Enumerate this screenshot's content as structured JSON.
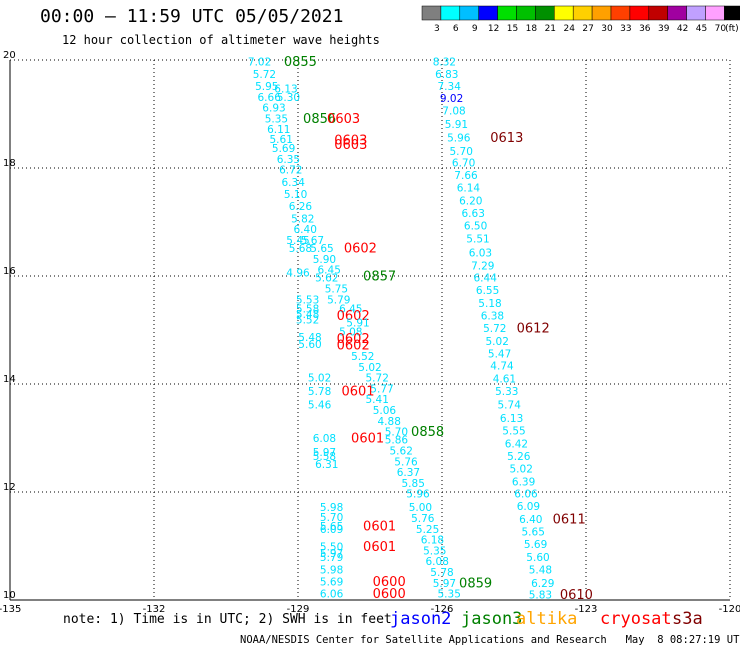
{
  "title": "00:00 – 11:59 UTC 05/05/2021",
  "subtitle": "12 hour collection of altimeter wave heights",
  "colorbar": {
    "labels": [
      "3",
      "6",
      "9",
      "12",
      "15",
      "18",
      "21",
      "24",
      "27",
      "30",
      "33",
      "36",
      "39",
      "42",
      "45",
      "70",
      "(ft)"
    ],
    "colors": [
      "#7f7f7f",
      "#00ffff",
      "#00bfff",
      "#0000ff",
      "#00e000",
      "#00c000",
      "#009000",
      "#ffff00",
      "#ffd000",
      "#ffa000",
      "#ff4000",
      "#ff0000",
      "#c00000",
      "#a000a0",
      "#c0a0ff",
      "#ffa0ff",
      "#000000"
    ]
  },
  "note": "note: 1) Time is in UTC; 2) SWH is in feet",
  "satellites": [
    {
      "name": "jason2",
      "color": "#0000ff"
    },
    {
      "name": "jason3",
      "color": "#008000"
    },
    {
      "name": "altika",
      "color": "#ffa500"
    },
    {
      "name": "cryosat",
      "color": "#ff0000"
    },
    {
      "name": "s3a",
      "color": "#800000"
    }
  ],
  "credit": "NOAA/NESDIS Center for Satellite Applications and Research   May  8 08:27:19 UTC 2021",
  "chart_data": {
    "type": "scatter",
    "xlim": [
      -135,
      -120
    ],
    "ylim": [
      10,
      20
    ],
    "xticks": [
      "-135",
      "-132",
      "-129",
      "-126",
      "-123",
      "-120"
    ],
    "yticks": [
      "10",
      "12",
      "14",
      "16",
      "18",
      "20"
    ],
    "grid": true,
    "colors": {
      "cyan": "#00e0ff",
      "lblue": "#00b0ff",
      "blue": "#0000ff",
      "green": "#008000",
      "red": "#ff0000",
      "maroon": "#800000"
    },
    "points": [
      {
        "x": -129.8,
        "y": 19.95,
        "v": "7.02",
        "c": "cyan"
      },
      {
        "x": -128.95,
        "y": 19.95,
        "v": "0855",
        "c": "green"
      },
      {
        "x": -129.7,
        "y": 19.72,
        "v": "5.72",
        "c": "cyan"
      },
      {
        "x": -129.65,
        "y": 19.5,
        "v": "5.95",
        "c": "cyan"
      },
      {
        "x": -129.25,
        "y": 19.45,
        "v": "6.13",
        "c": "cyan"
      },
      {
        "x": -129.6,
        "y": 19.3,
        "v": "6.66",
        "c": "cyan"
      },
      {
        "x": -129.2,
        "y": 19.3,
        "v": "5.30",
        "c": "cyan"
      },
      {
        "x": -129.5,
        "y": 19.1,
        "v": "6.93",
        "c": "cyan"
      },
      {
        "x": -129.45,
        "y": 18.9,
        "v": "5.35",
        "c": "cyan"
      },
      {
        "x": -128.55,
        "y": 18.9,
        "v": "0856",
        "c": "green"
      },
      {
        "x": -128.05,
        "y": 18.9,
        "v": "0603",
        "c": "red"
      },
      {
        "x": -129.4,
        "y": 18.7,
        "v": "6.11",
        "c": "cyan"
      },
      {
        "x": -129.35,
        "y": 18.52,
        "v": "5.61",
        "c": "cyan"
      },
      {
        "x": -127.9,
        "y": 18.5,
        "v": "0603",
        "c": "red"
      },
      {
        "x": -127.9,
        "y": 18.42,
        "v": "0603",
        "c": "red"
      },
      {
        "x": -129.3,
        "y": 18.35,
        "v": "5.69",
        "c": "cyan"
      },
      {
        "x": -129.2,
        "y": 18.15,
        "v": "6.35",
        "c": "cyan"
      },
      {
        "x": -129.15,
        "y": 17.95,
        "v": "6.72",
        "c": "cyan"
      },
      {
        "x": -129.1,
        "y": 17.72,
        "v": "6.34",
        "c": "cyan"
      },
      {
        "x": -129.05,
        "y": 17.5,
        "v": "5.10",
        "c": "cyan"
      },
      {
        "x": -128.95,
        "y": 17.28,
        "v": "6.26",
        "c": "cyan"
      },
      {
        "x": -128.9,
        "y": 17.05,
        "v": "5.82",
        "c": "cyan"
      },
      {
        "x": -128.85,
        "y": 16.85,
        "v": "6.40",
        "c": "cyan"
      },
      {
        "x": -128.7,
        "y": 16.65,
        "v": "5.67",
        "c": "cyan"
      },
      {
        "x": -129.0,
        "y": 16.65,
        "v": "5.45",
        "c": "cyan"
      },
      {
        "x": -128.95,
        "y": 16.5,
        "v": "5.68",
        "c": "cyan"
      },
      {
        "x": -128.5,
        "y": 16.5,
        "v": "5.65",
        "c": "cyan"
      },
      {
        "x": -127.7,
        "y": 16.5,
        "v": "0602",
        "c": "red"
      },
      {
        "x": -128.45,
        "y": 16.3,
        "v": "5.90",
        "c": "cyan"
      },
      {
        "x": -128.35,
        "y": 16.1,
        "v": "6.45",
        "c": "cyan"
      },
      {
        "x": -129.0,
        "y": 16.05,
        "v": "4.96",
        "c": "cyan"
      },
      {
        "x": -128.4,
        "y": 15.95,
        "v": "5.62",
        "c": "cyan"
      },
      {
        "x": -127.3,
        "y": 15.98,
        "v": "0857",
        "c": "green"
      },
      {
        "x": -128.2,
        "y": 15.75,
        "v": "5.75",
        "c": "cyan"
      },
      {
        "x": -128.15,
        "y": 15.55,
        "v": "5.79",
        "c": "cyan"
      },
      {
        "x": -128.8,
        "y": 15.55,
        "v": "5.53",
        "c": "cyan"
      },
      {
        "x": -128.8,
        "y": 15.38,
        "v": "5.58",
        "c": "cyan"
      },
      {
        "x": -127.9,
        "y": 15.38,
        "v": "6.45",
        "c": "cyan"
      },
      {
        "x": -128.8,
        "y": 15.28,
        "v": "5.48",
        "c": "cyan"
      },
      {
        "x": -127.85,
        "y": 15.25,
        "v": "0602",
        "c": "red"
      },
      {
        "x": -128.8,
        "y": 15.18,
        "v": "5.52",
        "c": "cyan"
      },
      {
        "x": -127.75,
        "y": 15.12,
        "v": "5.91",
        "c": "cyan"
      },
      {
        "x": -127.9,
        "y": 14.95,
        "v": "5.08",
        "c": "cyan"
      },
      {
        "x": -128.75,
        "y": 14.85,
        "v": "5.48",
        "c": "cyan"
      },
      {
        "x": -127.85,
        "y": 14.82,
        "v": "0602",
        "c": "red"
      },
      {
        "x": -127.85,
        "y": 14.7,
        "v": "0602",
        "c": "red"
      },
      {
        "x": -128.75,
        "y": 14.72,
        "v": "5.60",
        "c": "cyan"
      },
      {
        "x": -127.65,
        "y": 14.5,
        "v": "5.52",
        "c": "cyan"
      },
      {
        "x": -127.5,
        "y": 14.3,
        "v": "5.02",
        "c": "cyan"
      },
      {
        "x": -128.55,
        "y": 14.1,
        "v": "5.02",
        "c": "cyan"
      },
      {
        "x": -127.35,
        "y": 14.1,
        "v": "5.72",
        "c": "cyan"
      },
      {
        "x": -127.25,
        "y": 13.9,
        "v": "5.77",
        "c": "cyan"
      },
      {
        "x": -128.55,
        "y": 13.85,
        "v": "5.78",
        "c": "cyan"
      },
      {
        "x": -127.75,
        "y": 13.85,
        "v": "0601",
        "c": "red"
      },
      {
        "x": -127.35,
        "y": 13.7,
        "v": "5.41",
        "c": "cyan"
      },
      {
        "x": -128.55,
        "y": 13.6,
        "v": "5.46",
        "c": "cyan"
      },
      {
        "x": -127.2,
        "y": 13.5,
        "v": "5.06",
        "c": "cyan"
      },
      {
        "x": -127.1,
        "y": 13.3,
        "v": "4.88",
        "c": "cyan"
      },
      {
        "x": -126.95,
        "y": 13.1,
        "v": "5.70",
        "c": "cyan"
      },
      {
        "x": -126.3,
        "y": 13.1,
        "v": "0858",
        "c": "green"
      },
      {
        "x": -128.45,
        "y": 12.98,
        "v": "6.08",
        "c": "cyan"
      },
      {
        "x": -127.55,
        "y": 12.98,
        "v": "0601",
        "c": "red"
      },
      {
        "x": -126.95,
        "y": 12.95,
        "v": "5.86",
        "c": "cyan"
      },
      {
        "x": -126.85,
        "y": 12.75,
        "v": "5.62",
        "c": "cyan"
      },
      {
        "x": -128.45,
        "y": 12.72,
        "v": "5.97",
        "c": "cyan"
      },
      {
        "x": -128.45,
        "y": 12.65,
        "v": "5.58",
        "c": "cyan"
      },
      {
        "x": -126.75,
        "y": 12.55,
        "v": "5.76",
        "c": "cyan"
      },
      {
        "x": -128.4,
        "y": 12.5,
        "v": "6.31",
        "c": "cyan"
      },
      {
        "x": -126.7,
        "y": 12.35,
        "v": "6.37",
        "c": "cyan"
      },
      {
        "x": -126.6,
        "y": 12.15,
        "v": "5.85",
        "c": "cyan"
      },
      {
        "x": -126.5,
        "y": 11.95,
        "v": "5.96",
        "c": "cyan"
      },
      {
        "x": -128.3,
        "y": 11.7,
        "v": "5.98",
        "c": "cyan"
      },
      {
        "x": -126.45,
        "y": 11.7,
        "v": "5.00",
        "c": "cyan"
      },
      {
        "x": -128.3,
        "y": 11.52,
        "v": "5.70",
        "c": "cyan"
      },
      {
        "x": -126.4,
        "y": 11.5,
        "v": "5.76",
        "c": "cyan"
      },
      {
        "x": -128.3,
        "y": 11.35,
        "v": "5.65",
        "c": "cyan"
      },
      {
        "x": -127.3,
        "y": 11.35,
        "v": "0601",
        "c": "red"
      },
      {
        "x": -128.3,
        "y": 11.3,
        "v": "6.09",
        "c": "cyan"
      },
      {
        "x": -126.3,
        "y": 11.3,
        "v": "5.25",
        "c": "cyan"
      },
      {
        "x": -126.2,
        "y": 11.1,
        "v": "6.18",
        "c": "cyan"
      },
      {
        "x": -128.3,
        "y": 10.97,
        "v": "5.50",
        "c": "cyan"
      },
      {
        "x": -127.3,
        "y": 10.97,
        "v": "0601",
        "c": "red"
      },
      {
        "x": -126.15,
        "y": 10.9,
        "v": "5.35",
        "c": "cyan"
      },
      {
        "x": -128.3,
        "y": 10.85,
        "v": "5.97",
        "c": "cyan"
      },
      {
        "x": -128.3,
        "y": 10.78,
        "v": "5.79",
        "c": "cyan"
      },
      {
        "x": -126.1,
        "y": 10.7,
        "v": "6.08",
        "c": "cyan"
      },
      {
        "x": -128.3,
        "y": 10.55,
        "v": "5.98",
        "c": "cyan"
      },
      {
        "x": -126.0,
        "y": 10.5,
        "v": "5.78",
        "c": "cyan"
      },
      {
        "x": -128.3,
        "y": 10.32,
        "v": "5.69",
        "c": "cyan"
      },
      {
        "x": -127.1,
        "y": 10.32,
        "v": "0600",
        "c": "red"
      },
      {
        "x": -125.95,
        "y": 10.3,
        "v": "5.97",
        "c": "cyan"
      },
      {
        "x": -125.3,
        "y": 10.3,
        "v": "0859",
        "c": "green"
      },
      {
        "x": -128.3,
        "y": 10.1,
        "v": "6.06",
        "c": "cyan"
      },
      {
        "x": -127.1,
        "y": 10.1,
        "v": "0600",
        "c": "red"
      },
      {
        "x": -125.85,
        "y": 10.1,
        "v": "5.35",
        "c": "cyan"
      },
      {
        "x": -125.95,
        "y": 19.95,
        "v": "8.32",
        "c": "cyan"
      },
      {
        "x": -125.9,
        "y": 19.72,
        "v": "6.83",
        "c": "cyan"
      },
      {
        "x": -125.85,
        "y": 19.5,
        "v": "7.34",
        "c": "cyan"
      },
      {
        "x": -125.8,
        "y": 19.28,
        "v": "9.02",
        "c": "blue"
      },
      {
        "x": -125.75,
        "y": 19.05,
        "v": "7.08",
        "c": "cyan"
      },
      {
        "x": -125.7,
        "y": 18.8,
        "v": "5.91",
        "c": "cyan"
      },
      {
        "x": -125.65,
        "y": 18.55,
        "v": "5.96",
        "c": "cyan"
      },
      {
        "x": -124.65,
        "y": 18.55,
        "v": "0613",
        "c": "maroon"
      },
      {
        "x": -125.6,
        "y": 18.3,
        "v": "5.70",
        "c": "cyan"
      },
      {
        "x": -125.55,
        "y": 18.08,
        "v": "6.70",
        "c": "cyan"
      },
      {
        "x": -125.5,
        "y": 17.85,
        "v": "7.66",
        "c": "cyan"
      },
      {
        "x": -125.45,
        "y": 17.62,
        "v": "6.14",
        "c": "cyan"
      },
      {
        "x": -125.4,
        "y": 17.38,
        "v": "6.20",
        "c": "cyan"
      },
      {
        "x": -125.35,
        "y": 17.15,
        "v": "6.63",
        "c": "cyan"
      },
      {
        "x": -125.3,
        "y": 16.92,
        "v": "6.50",
        "c": "cyan"
      },
      {
        "x": -125.25,
        "y": 16.68,
        "v": "5.51",
        "c": "cyan"
      },
      {
        "x": -125.2,
        "y": 16.42,
        "v": "6.03",
        "c": "cyan"
      },
      {
        "x": -125.15,
        "y": 16.18,
        "v": "7.29",
        "c": "cyan"
      },
      {
        "x": -125.1,
        "y": 15.95,
        "v": "6.44",
        "c": "cyan"
      },
      {
        "x": -125.05,
        "y": 15.72,
        "v": "6.55",
        "c": "cyan"
      },
      {
        "x": -125.0,
        "y": 15.48,
        "v": "5.18",
        "c": "cyan"
      },
      {
        "x": -124.95,
        "y": 15.25,
        "v": "6.38",
        "c": "cyan"
      },
      {
        "x": -124.9,
        "y": 15.02,
        "v": "5.72",
        "c": "cyan"
      },
      {
        "x": -124.1,
        "y": 15.02,
        "v": "0612",
        "c": "maroon"
      },
      {
        "x": -124.85,
        "y": 14.78,
        "v": "5.02",
        "c": "cyan"
      },
      {
        "x": -124.8,
        "y": 14.55,
        "v": "5.47",
        "c": "cyan"
      },
      {
        "x": -124.75,
        "y": 14.32,
        "v": "4.74",
        "c": "cyan"
      },
      {
        "x": -124.7,
        "y": 14.08,
        "v": "4.61",
        "c": "cyan"
      },
      {
        "x": -124.65,
        "y": 13.85,
        "v": "5.33",
        "c": "cyan"
      },
      {
        "x": -124.6,
        "y": 13.6,
        "v": "5.74",
        "c": "cyan"
      },
      {
        "x": -124.55,
        "y": 13.35,
        "v": "6.13",
        "c": "cyan"
      },
      {
        "x": -124.5,
        "y": 13.12,
        "v": "5.55",
        "c": "cyan"
      },
      {
        "x": -124.45,
        "y": 12.88,
        "v": "6.42",
        "c": "cyan"
      },
      {
        "x": -124.4,
        "y": 12.65,
        "v": "5.26",
        "c": "cyan"
      },
      {
        "x": -124.35,
        "y": 12.42,
        "v": "5.02",
        "c": "cyan"
      },
      {
        "x": -124.3,
        "y": 12.18,
        "v": "6.39",
        "c": "cyan"
      },
      {
        "x": -124.25,
        "y": 11.95,
        "v": "6.06",
        "c": "cyan"
      },
      {
        "x": -124.2,
        "y": 11.72,
        "v": "6.09",
        "c": "cyan"
      },
      {
        "x": -124.15,
        "y": 11.48,
        "v": "6.40",
        "c": "cyan"
      },
      {
        "x": -123.35,
        "y": 11.48,
        "v": "0611",
        "c": "maroon"
      },
      {
        "x": -124.1,
        "y": 11.25,
        "v": "5.65",
        "c": "cyan"
      },
      {
        "x": -124.05,
        "y": 11.02,
        "v": "5.69",
        "c": "cyan"
      },
      {
        "x": -124.0,
        "y": 10.78,
        "v": "5.60",
        "c": "cyan"
      },
      {
        "x": -123.95,
        "y": 10.55,
        "v": "5.48",
        "c": "cyan"
      },
      {
        "x": -123.9,
        "y": 10.3,
        "v": "6.29",
        "c": "cyan"
      },
      {
        "x": -123.95,
        "y": 10.08,
        "v": "5.83",
        "c": "cyan"
      },
      {
        "x": -123.2,
        "y": 10.08,
        "v": "0610",
        "c": "maroon"
      }
    ]
  }
}
